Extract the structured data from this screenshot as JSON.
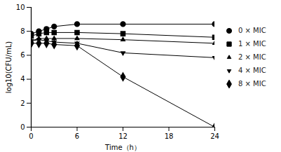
{
  "chart_data": {
    "type": "line",
    "x_label": "Time（h）",
    "y_label": "log10(CFU/mL)",
    "x": [
      0,
      1,
      2,
      3,
      6,
      12,
      24
    ],
    "xlim": [
      0,
      24
    ],
    "xticks": [
      0,
      6,
      12,
      18,
      24
    ],
    "ylim": [
      0,
      10
    ],
    "yticks": [
      0,
      2,
      4,
      6,
      8,
      10
    ],
    "legend": "right",
    "grid": false,
    "series": [
      {
        "name": "0 × MIC",
        "color": "#000000",
        "marker": "circle",
        "values": [
          7.8,
          8.0,
          8.2,
          8.4,
          8.6,
          8.6,
          8.6
        ]
      },
      {
        "name": "1 × MIC",
        "color": "#000000",
        "marker": "square",
        "values": [
          7.6,
          7.8,
          7.9,
          7.9,
          7.9,
          7.8,
          7.5
        ]
      },
      {
        "name": "2 × MIC",
        "color": "#000000",
        "marker": "triangle-up",
        "values": [
          7.2,
          7.4,
          7.4,
          7.4,
          7.4,
          7.3,
          7.0
        ]
      },
      {
        "name": "4 × MIC",
        "color": "#000000",
        "marker": "triangle-down",
        "values": [
          7.2,
          7.3,
          7.2,
          7.1,
          7.0,
          6.2,
          5.8
        ]
      },
      {
        "name": "8 × MIC",
        "color": "#000000",
        "marker": "diamond",
        "values": [
          7.0,
          7.0,
          7.0,
          6.9,
          6.8,
          4.2,
          0.0
        ]
      }
    ]
  }
}
